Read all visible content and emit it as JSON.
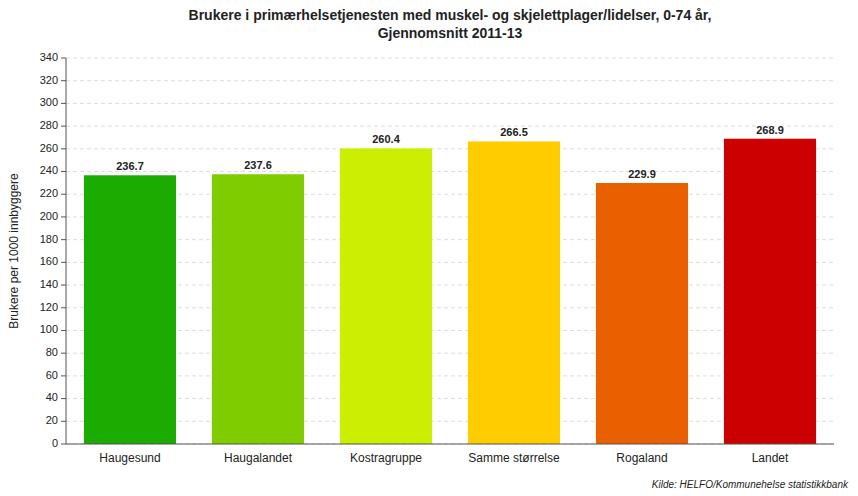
{
  "chart_data": {
    "type": "bar",
    "title": "Brukere i primærhelsetjenesten med muskel- og skjelettplager/lidelser, 0-74 år,\nGjennomsnitt 2011-13",
    "categories": [
      "Haugesund",
      "Haugalandet",
      "Kostragruppe",
      "Samme størrelse",
      "Rogaland",
      "Landet"
    ],
    "values": [
      236.7,
      237.6,
      260.4,
      266.5,
      229.9,
      268.9
    ],
    "colors": [
      "#1aac00",
      "#7fcc00",
      "#ccee00",
      "#ffcc00",
      "#e86000",
      "#cc0000"
    ],
    "ylabel": "Brukere per 1000 innbyggere",
    "ylim": [
      0,
      340
    ],
    "yticks": [
      0,
      20,
      40,
      60,
      80,
      100,
      120,
      140,
      160,
      180,
      200,
      220,
      240,
      260,
      280,
      300,
      320,
      340
    ],
    "grid": true,
    "data_labels": true,
    "source": "Kilde: HELFO/Kommunehelse statistikkbank"
  }
}
